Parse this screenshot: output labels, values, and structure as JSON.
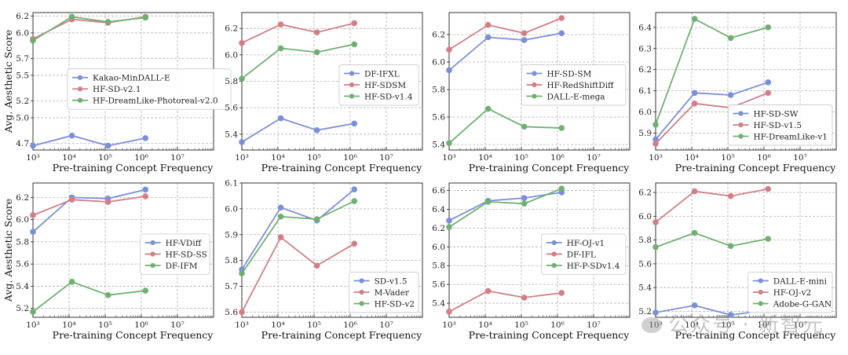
{
  "figure": {
    "ylabel": "Avg. Aesthetic Score",
    "xlabel": "Pre-training Concept Frequency",
    "watermark": "公众号 · 新智元"
  },
  "colors": {
    "blue": "#7b8fd6",
    "red": "#d17f85",
    "green": "#6fb072"
  },
  "chart_data": [
    {
      "type": "line",
      "xscale": "log",
      "xlim": [
        1000,
        100000000
      ],
      "ylim": [
        4.62,
        6.24
      ],
      "yticks": [
        4.7,
        5.0,
        5.2,
        5.5,
        5.7,
        6.0,
        6.2
      ],
      "xticks": [
        {
          "v": 1000,
          "l": "10³"
        },
        {
          "v": 10000,
          "l": "10⁴"
        },
        {
          "v": 100000,
          "l": "10⁵"
        },
        {
          "v": 1000000,
          "l": "10⁶"
        },
        {
          "v": 10000000,
          "l": "10⁷"
        }
      ],
      "ylabel": "Avg. Aesthetic Score",
      "xlabel": "Pre-training Concept Frequency",
      "legend": "center",
      "x": [
        1000,
        12000,
        120000,
        1300000
      ],
      "series": [
        {
          "name": "Kakao-MinDALL-E",
          "color": "blue",
          "values": [
            4.67,
            4.79,
            4.67,
            4.76
          ]
        },
        {
          "name": "HF-SD-v2.1",
          "color": "red",
          "values": [
            5.93,
            6.16,
            6.12,
            6.19
          ]
        },
        {
          "name": "HF-DreamLike-Photoreal-v2.0",
          "color": "green",
          "values": [
            5.91,
            6.19,
            6.13,
            6.18
          ]
        }
      ]
    },
    {
      "type": "line",
      "xscale": "log",
      "xlim": [
        1000,
        100000000
      ],
      "ylim": [
        5.28,
        6.32
      ],
      "yticks": [
        5.4,
        5.6,
        5.8,
        6.0,
        6.2
      ],
      "xticks": [
        {
          "v": 1000,
          "l": "10³"
        },
        {
          "v": 10000,
          "l": "10⁴"
        },
        {
          "v": 100000,
          "l": "10⁵"
        },
        {
          "v": 1000000,
          "l": "10⁶"
        },
        {
          "v": 10000000,
          "l": "10⁷"
        }
      ],
      "xlabel": "Pre-training Concept Frequency",
      "legend": "center-right",
      "x": [
        1000,
        12000,
        120000,
        1300000
      ],
      "series": [
        {
          "name": "DF-IFXL",
          "color": "blue",
          "values": [
            5.34,
            5.52,
            5.43,
            5.48
          ]
        },
        {
          "name": "HF-SDSM",
          "color": "red",
          "values": [
            6.09,
            6.23,
            6.17,
            6.24
          ]
        },
        {
          "name": "HF-SD-v1.4",
          "color": "green",
          "values": [
            5.82,
            6.05,
            6.02,
            6.08
          ]
        }
      ]
    },
    {
      "type": "line",
      "xscale": "log",
      "xlim": [
        1000,
        100000000
      ],
      "ylim": [
        5.36,
        6.36
      ],
      "yticks": [
        5.4,
        5.6,
        5.8,
        6.0,
        6.2
      ],
      "xticks": [
        {
          "v": 1000,
          "l": "10³"
        },
        {
          "v": 10000,
          "l": "10⁴"
        },
        {
          "v": 100000,
          "l": "10⁵"
        },
        {
          "v": 1000000,
          "l": "10⁶"
        },
        {
          "v": 10000000,
          "l": "10⁷"
        }
      ],
      "xlabel": "Pre-training Concept Frequency",
      "legend": "center-right",
      "x": [
        1000,
        12000,
        120000,
        1300000
      ],
      "series": [
        {
          "name": "HF-SD-SM",
          "color": "blue",
          "values": [
            5.94,
            6.18,
            6.16,
            6.21
          ]
        },
        {
          "name": "HF-RedShiftDiff",
          "color": "red",
          "values": [
            6.09,
            6.27,
            6.21,
            6.32
          ]
        },
        {
          "name": "DALL-E-mega",
          "color": "green",
          "values": [
            5.41,
            5.66,
            5.53,
            5.52
          ]
        }
      ]
    },
    {
      "type": "line",
      "xscale": "log",
      "xlim": [
        1000,
        100000000
      ],
      "ylim": [
        5.82,
        6.47
      ],
      "yticks": [
        5.9,
        6.0,
        6.1,
        6.2,
        6.3,
        6.4
      ],
      "xticks": [
        {
          "v": 1000,
          "l": "10³"
        },
        {
          "v": 10000,
          "l": "10⁴"
        },
        {
          "v": 100000,
          "l": "10⁵"
        },
        {
          "v": 1000000,
          "l": "10⁶"
        },
        {
          "v": 10000000,
          "l": "10⁷"
        }
      ],
      "xlabel": "Pre-training Concept Frequency",
      "legend": "bottom-right",
      "x": [
        1000,
        12000,
        120000,
        1300000
      ],
      "series": [
        {
          "name": "HF-SD-SW",
          "color": "blue",
          "values": [
            5.87,
            6.09,
            6.08,
            6.14
          ]
        },
        {
          "name": "HF-SD-v1.5",
          "color": "red",
          "values": [
            5.85,
            6.04,
            6.02,
            6.09
          ]
        },
        {
          "name": "HF-DreamLike-v1",
          "color": "green",
          "values": [
            5.94,
            6.44,
            6.35,
            6.4
          ]
        }
      ]
    },
    {
      "type": "line",
      "xscale": "log",
      "xlim": [
        1000,
        100000000
      ],
      "ylim": [
        5.12,
        6.33
      ],
      "yticks": [
        5.2,
        5.4,
        5.6,
        5.8,
        6.0,
        6.2
      ],
      "xticks": [
        {
          "v": 1000,
          "l": "10³"
        },
        {
          "v": 10000,
          "l": "10⁴"
        },
        {
          "v": 100000,
          "l": "10⁵"
        },
        {
          "v": 1000000,
          "l": "10⁶"
        },
        {
          "v": 10000000,
          "l": "10⁷"
        }
      ],
      "ylabel": "Avg. Aesthetic Score",
      "xlabel": "Pre-training Concept Frequency",
      "legend": "center-right",
      "x": [
        1000,
        12000,
        120000,
        1300000
      ],
      "series": [
        {
          "name": "HF-VDiff",
          "color": "blue",
          "values": [
            5.89,
            6.2,
            6.19,
            6.27
          ]
        },
        {
          "name": "HF-SD-SS",
          "color": "red",
          "values": [
            6.04,
            6.18,
            6.16,
            6.21
          ]
        },
        {
          "name": "DF-IFM",
          "color": "green",
          "values": [
            5.17,
            5.44,
            5.32,
            5.36
          ]
        }
      ]
    },
    {
      "type": "line",
      "xscale": "log",
      "xlim": [
        1000,
        100000000
      ],
      "ylim": [
        5.58,
        6.1
      ],
      "yticks": [
        5.6,
        5.7,
        5.8,
        5.9,
        6.0,
        6.1
      ],
      "xticks": [
        {
          "v": 1000,
          "l": "10³"
        },
        {
          "v": 10000,
          "l": "10⁴"
        },
        {
          "v": 100000,
          "l": "10⁵"
        },
        {
          "v": 1000000,
          "l": "10⁶"
        },
        {
          "v": 10000000,
          "l": "10⁷"
        }
      ],
      "xlabel": "Pre-training Concept Frequency",
      "legend": "bottom-right",
      "x": [
        1000,
        12000,
        120000,
        1300000
      ],
      "series": [
        {
          "name": "SD-v1.5",
          "color": "blue",
          "values": [
            5.765,
            6.005,
            5.955,
            6.075
          ]
        },
        {
          "name": "M-Vader",
          "color": "red",
          "values": [
            5.6,
            5.89,
            5.78,
            5.865
          ]
        },
        {
          "name": "HF-SD-v2",
          "color": "green",
          "values": [
            5.75,
            5.97,
            5.96,
            6.03
          ]
        }
      ]
    },
    {
      "type": "line",
      "xscale": "log",
      "xlim": [
        1000,
        100000000
      ],
      "ylim": [
        5.25,
        6.68
      ],
      "yticks": [
        5.4,
        5.6,
        5.8,
        6.0,
        6.2,
        6.4,
        6.6
      ],
      "xticks": [
        {
          "v": 1000,
          "l": "10³"
        },
        {
          "v": 10000,
          "l": "10⁴"
        },
        {
          "v": 100000,
          "l": "10⁵"
        },
        {
          "v": 1000000,
          "l": "10⁶"
        },
        {
          "v": 10000000,
          "l": "10⁷"
        }
      ],
      "xlabel": "Pre-training Concept Frequency",
      "legend": "center-right",
      "x": [
        1000,
        12000,
        120000,
        1300000
      ],
      "series": [
        {
          "name": "HF-OJ-v1",
          "color": "blue",
          "values": [
            6.28,
            6.49,
            6.52,
            6.58
          ]
        },
        {
          "name": "DF-IFL",
          "color": "red",
          "values": [
            5.31,
            5.53,
            5.46,
            5.51
          ]
        },
        {
          "name": "HF-P-SDv1.4",
          "color": "green",
          "values": [
            6.21,
            6.48,
            6.46,
            6.62
          ]
        }
      ]
    },
    {
      "type": "line",
      "xscale": "log",
      "xlim": [
        1000,
        100000000
      ],
      "ylim": [
        5.15,
        6.28
      ],
      "yticks": [
        5.2,
        5.4,
        5.6,
        5.8,
        6.0,
        6.2
      ],
      "xticks": [
        {
          "v": 1000,
          "l": "10³"
        },
        {
          "v": 10000,
          "l": "10⁴"
        },
        {
          "v": 100000,
          "l": "10⁵"
        },
        {
          "v": 1000000,
          "l": "10⁶"
        },
        {
          "v": 10000000,
          "l": "10⁷"
        }
      ],
      "xlabel": "Pre-training Concept Frequency",
      "legend": "bottom-right",
      "x": [
        1000,
        12000,
        120000,
        1300000
      ],
      "series": [
        {
          "name": "DALL-E-mini",
          "color": "blue",
          "values": [
            5.19,
            5.25,
            5.17,
            5.21
          ]
        },
        {
          "name": "HF-OJ-v2",
          "color": "red",
          "values": [
            5.95,
            6.21,
            6.17,
            6.23
          ]
        },
        {
          "name": "Adobe-G-GAN",
          "color": "green",
          "values": [
            5.74,
            5.86,
            5.75,
            5.81
          ]
        }
      ]
    }
  ]
}
